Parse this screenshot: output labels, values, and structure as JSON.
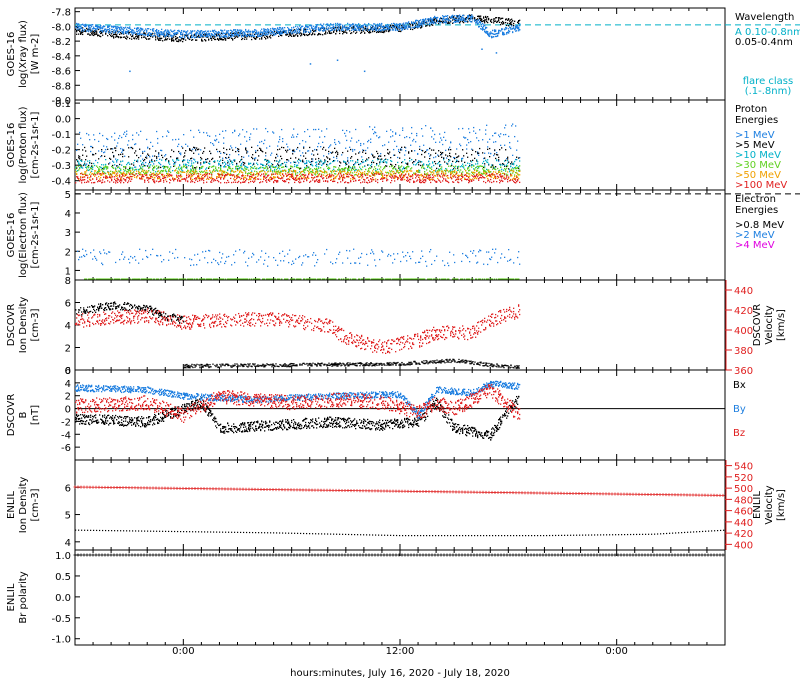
{
  "colors": {
    "black": "#000000",
    "blue": "#1e7fe0",
    "cyan": "#00b0c8",
    "green": "#60d020",
    "orange": "#f0a000",
    "red": "#e02020",
    "magenta": "#e000e0"
  },
  "footer": {
    "xlabel": "hours:minutes, July 16, 2020 - July 18, 2020"
  },
  "x_axis": {
    "range_hours": [
      -6,
      30
    ],
    "ticks": [
      {
        "h": 0,
        "label": "0:00"
      },
      {
        "h": 12,
        "label": "12:00"
      },
      {
        "h": 24,
        "label": "0:00"
      }
    ],
    "minor_step_hours": 1
  },
  "chart_data": [
    {
      "type": "scatter",
      "id": "xray",
      "ylabel": [
        "GOES-16",
        "log(Xray flux)",
        "[W m-2]"
      ],
      "ylim": [
        -9.0,
        -7.75
      ],
      "yticks": [
        -7.8,
        -8.0,
        -8.2,
        -8.4,
        -8.6,
        -8.8,
        -9.0
      ],
      "ytick_labels": [
        "-7.8",
        "-8.0",
        "-8.2",
        "-8.4",
        "-8.6",
        "-8.8",
        "-9.0"
      ],
      "legend_title": [
        "Wavelength"
      ],
      "legend": [
        {
          "label": "A 0.10-0.8nm",
          "color": "cyan"
        },
        {
          "label": "0.05-0.4nm",
          "color": "black"
        }
      ],
      "extra_label": [
        "flare class",
        "(.1-.8nm)"
      ],
      "reference_line": {
        "y": -7.98,
        "color": "cyan",
        "dashed": true
      },
      "series": [
        {
          "color": "black",
          "x_start": -6,
          "x_end": 18.6,
          "anchors": [
            [
              -6,
              -8.05
            ],
            [
              -3,
              -8.12
            ],
            [
              0,
              -8.15
            ],
            [
              4,
              -8.12
            ],
            [
              8,
              -8.05
            ],
            [
              12,
              -8.02
            ],
            [
              14,
              -7.92
            ],
            [
              16,
              -7.88
            ],
            [
              18.6,
              -7.95
            ]
          ],
          "noise": 0.05,
          "density": 4
        },
        {
          "color": "blue",
          "x_start": -6,
          "x_end": 18.6,
          "anchors": [
            [
              -6,
              -8.0
            ],
            [
              -3,
              -8.05
            ],
            [
              0,
              -8.1
            ],
            [
              4,
              -8.08
            ],
            [
              8,
              -8.0
            ],
            [
              12,
              -8.0
            ],
            [
              14,
              -7.9
            ],
            [
              16,
              -7.88
            ],
            [
              17,
              -8.1
            ],
            [
              18.6,
              -8.0
            ]
          ],
          "noise": 0.05,
          "density": 6,
          "outliers": [
            [
              7,
              -8.5
            ],
            [
              8.5,
              -8.45
            ],
            [
              10,
              -8.6
            ],
            [
              16.5,
              -8.3
            ],
            [
              17.3,
              -8.35
            ],
            [
              -3,
              -8.6
            ]
          ]
        }
      ]
    },
    {
      "type": "scatter",
      "id": "protons",
      "ylabel": [
        "GOES-16",
        "log(Proton flux)",
        "[cm-2s-1sr-1]"
      ],
      "ylim": [
        -0.46,
        0.12
      ],
      "yticks": [
        0.1,
        0.0,
        -0.1,
        -0.2,
        -0.3,
        -0.4
      ],
      "ytick_labels": [
        "0.1",
        "0.0",
        "-0.1",
        "-0.2",
        "-0.3",
        "-0.4"
      ],
      "legend_title": [
        "Proton",
        "Energies"
      ],
      "legend": [
        {
          "label": ">1 MeV",
          "color": "blue"
        },
        {
          "label": ">5 MeV",
          "color": "black"
        },
        {
          "label": ">10 MeV",
          "color": "cyan"
        },
        {
          "label": ">30 MeV",
          "color": "green"
        },
        {
          "label": ">50 MeV",
          "color": "orange"
        },
        {
          "label": ">100 MeV",
          "color": "red"
        }
      ],
      "series": [
        {
          "color": "blue",
          "x_start": -6,
          "x_end": 18.6,
          "anchors": [
            [
              -6,
              -0.2
            ],
            [
              18.6,
              -0.15
            ]
          ],
          "noise": 0.12,
          "density": 2
        },
        {
          "color": "black",
          "x_start": -6,
          "x_end": 18.6,
          "anchors": [
            [
              -6,
              -0.25
            ],
            [
              18.6,
              -0.25
            ]
          ],
          "noise": 0.07,
          "density": 2
        },
        {
          "color": "cyan",
          "x_start": -6,
          "x_end": 18.6,
          "anchors": [
            [
              -6,
              -0.3
            ],
            [
              18.6,
              -0.3
            ]
          ],
          "noise": 0.04,
          "density": 2
        },
        {
          "color": "green",
          "x_start": -6,
          "x_end": 18.6,
          "anchors": [
            [
              -6,
              -0.33
            ],
            [
              18.6,
              -0.33
            ]
          ],
          "noise": 0.03,
          "density": 3
        },
        {
          "color": "orange",
          "x_start": -6,
          "x_end": 18.6,
          "anchors": [
            [
              -6,
              -0.36
            ],
            [
              18.6,
              -0.36
            ]
          ],
          "noise": 0.03,
          "density": 3
        },
        {
          "color": "red",
          "x_start": -6,
          "x_end": 18.6,
          "anchors": [
            [
              -6,
              -0.38
            ],
            [
              18.6,
              -0.38
            ]
          ],
          "noise": 0.03,
          "density": 3
        }
      ]
    },
    {
      "type": "scatter",
      "id": "electrons",
      "ylabel": [
        "GOES-16",
        "log(Electron flux)",
        "[cm-2s-1sr-1]"
      ],
      "ylim": [
        0.5,
        5.2
      ],
      "yticks": [
        5,
        4,
        3,
        2,
        1
      ],
      "ytick_labels": [
        "5",
        "4",
        "3",
        "2",
        "1"
      ],
      "legend_title": [
        "Electron",
        "Energies"
      ],
      "legend": [
        {
          "label": ">0.8 MeV",
          "color": "black"
        },
        {
          "label": ">2 MeV",
          "color": "blue"
        },
        {
          "label": ">4 MeV",
          "color": "magenta"
        }
      ],
      "reference_line": {
        "y": 5,
        "color": "black",
        "dashed": true
      },
      "series": [
        {
          "color": "blue",
          "x_start": -6,
          "x_end": 18.6,
          "anchors": [
            [
              -6,
              1.7
            ],
            [
              18.6,
              1.7
            ]
          ],
          "noise": 0.45,
          "density": 1
        },
        {
          "color": "green",
          "x_start": -5.5,
          "x_end": 18.6,
          "anchors": [
            [
              -5.5,
              0.58
            ],
            [
              18.6,
              0.58
            ]
          ],
          "noise": 0.0,
          "density": 2
        }
      ]
    },
    {
      "type": "scatter",
      "id": "dscovr_density",
      "ylabel": [
        "DSCOVR",
        "Ion Density",
        "[cm-3]"
      ],
      "ylim": [
        0,
        8
      ],
      "yticks": [
        8,
        6,
        4,
        2,
        0
      ],
      "ytick_labels": [
        "8",
        "6",
        "4",
        "2",
        "0"
      ],
      "right_axis": {
        "ylabel": [
          "DSCOVR",
          "Velocity",
          "[km/s]"
        ],
        "color": "red",
        "ylim": [
          360,
          450
        ],
        "ticks": [
          440,
          420,
          400,
          380,
          360
        ],
        "tick_labels": [
          "440",
          "420",
          "400",
          "380",
          "360"
        ]
      },
      "series": [
        {
          "color": "black",
          "x_start": -6,
          "x_end": 0,
          "anchors": [
            [
              -6,
              5.2
            ],
            [
              -4,
              5.8
            ],
            [
              -2,
              5.5
            ],
            [
              -1,
              4.8
            ],
            [
              0,
              4.5
            ]
          ],
          "noise": 0.35,
          "density": 4
        },
        {
          "color": "black",
          "x_start": 0,
          "x_end": 18.6,
          "anchors": [
            [
              0,
              0.4
            ],
            [
              6,
              0.5
            ],
            [
              12,
              0.6
            ],
            [
              15,
              0.9
            ],
            [
              17,
              0.5
            ],
            [
              18.6,
              0.3
            ]
          ],
          "noise": 0.15,
          "density": 3
        },
        {
          "color": "red",
          "axis": "right",
          "x_start": -6,
          "x_end": 18.6,
          "anchors": [
            [
              -6,
              410
            ],
            [
              -2,
              415
            ],
            [
              0,
              408
            ],
            [
              2,
              410
            ],
            [
              5,
              412
            ],
            [
              8,
              405
            ],
            [
              9,
              392
            ],
            [
              11,
              383
            ],
            [
              13,
              390
            ],
            [
              14,
              398
            ],
            [
              16,
              398
            ],
            [
              17,
              410
            ],
            [
              18.6,
              420
            ]
          ],
          "noise": 7,
          "density": 4
        }
      ]
    },
    {
      "type": "scatter",
      "id": "dscovr_b",
      "ylabel": [
        "DSCOVR",
        "B",
        "[nT]"
      ],
      "ylim": [
        -8,
        6
      ],
      "yticks": [
        6,
        4,
        2,
        0,
        -2,
        -4,
        -6
      ],
      "ytick_labels": [
        "6",
        "4",
        "2",
        "0",
        "-2",
        "-4",
        "-6"
      ],
      "zero_line": true,
      "legend": [
        {
          "label": "Bx",
          "color": "black"
        },
        {
          "label": "By",
          "color": "blue"
        },
        {
          "label": "Bz",
          "color": "red"
        }
      ],
      "series": [
        {
          "color": "black",
          "x_start": -6,
          "x_end": 18.6,
          "anchors": [
            [
              -6,
              -1.5
            ],
            [
              -2,
              -2
            ],
            [
              1,
              1
            ],
            [
              2,
              -3
            ],
            [
              5,
              -2.5
            ],
            [
              8,
              -2
            ],
            [
              11,
              -2.5
            ],
            [
              13,
              -2
            ],
            [
              14,
              1
            ],
            [
              15,
              -3
            ],
            [
              17,
              -4
            ],
            [
              18.6,
              2
            ]
          ],
          "noise": 0.8,
          "density": 5
        },
        {
          "color": "blue",
          "x_start": -6,
          "x_end": 18.6,
          "anchors": [
            [
              -6,
              3.3
            ],
            [
              -2,
              3
            ],
            [
              0,
              2
            ],
            [
              4,
              1.5
            ],
            [
              8,
              2
            ],
            [
              12,
              2.3
            ],
            [
              13,
              -1
            ],
            [
              14,
              3
            ],
            [
              16,
              2.5
            ],
            [
              17,
              4
            ],
            [
              18.6,
              3.5
            ]
          ],
          "noise": 0.5,
          "density": 5
        },
        {
          "color": "red",
          "x_start": -6,
          "x_end": 18.6,
          "anchors": [
            [
              -6,
              0.5
            ],
            [
              -2,
              1
            ],
            [
              0,
              -1
            ],
            [
              2,
              2
            ],
            [
              6,
              1
            ],
            [
              9,
              1.5
            ],
            [
              11,
              1
            ],
            [
              13,
              -0.5
            ],
            [
              14,
              1
            ],
            [
              15,
              0
            ],
            [
              17,
              3
            ],
            [
              18.6,
              -1
            ]
          ],
          "noise": 1.1,
          "density": 5
        }
      ]
    },
    {
      "type": "line",
      "id": "enlil_density",
      "ylabel": [
        "ENLIL",
        "Ion Density",
        "[cm-3]"
      ],
      "ylim": [
        3.7,
        7.0
      ],
      "yticks": [
        6,
        5,
        4
      ],
      "ytick_labels": [
        "6",
        "5",
        "4"
      ],
      "right_axis": {
        "ylabel": [
          "ENLIL",
          "Velocity",
          "[km/s]"
        ],
        "color": "red",
        "ylim": [
          390,
          550
        ],
        "ticks": [
          540,
          520,
          500,
          480,
          460,
          440,
          420,
          400
        ],
        "tick_labels": [
          "540",
          "520",
          "500",
          "480",
          "460",
          "440",
          "420",
          "400"
        ]
      },
      "series": [
        {
          "color": "black",
          "x_start": -6,
          "x_end": 30,
          "anchors": [
            [
              -6,
              4.45
            ],
            [
              5,
              4.35
            ],
            [
              12,
              4.25
            ],
            [
              20,
              4.25
            ],
            [
              26,
              4.3
            ],
            [
              30,
              4.45
            ]
          ],
          "dotted": true
        },
        {
          "color": "red",
          "axis": "right",
          "x_start": -6,
          "x_end": 30,
          "anchors": [
            [
              -6,
              502
            ],
            [
              30,
              487
            ]
          ],
          "plus_markers": true
        }
      ]
    },
    {
      "type": "line",
      "id": "enlil_polarity",
      "ylabel": [
        "ENLIL",
        "Br polarity"
      ],
      "ylim": [
        -1.15,
        1.12
      ],
      "yticks": [
        1.0,
        0.5,
        0.0,
        -0.5,
        -1.0
      ],
      "ytick_labels": [
        "1.0",
        "0.5",
        "0.0",
        "-0.5",
        "-1.0"
      ],
      "series": [
        {
          "color": "black",
          "x_start": -6,
          "x_end": 30,
          "anchors": [
            [
              -6,
              1.0
            ],
            [
              30,
              1.0
            ]
          ],
          "plus_markers": true
        }
      ]
    }
  ]
}
